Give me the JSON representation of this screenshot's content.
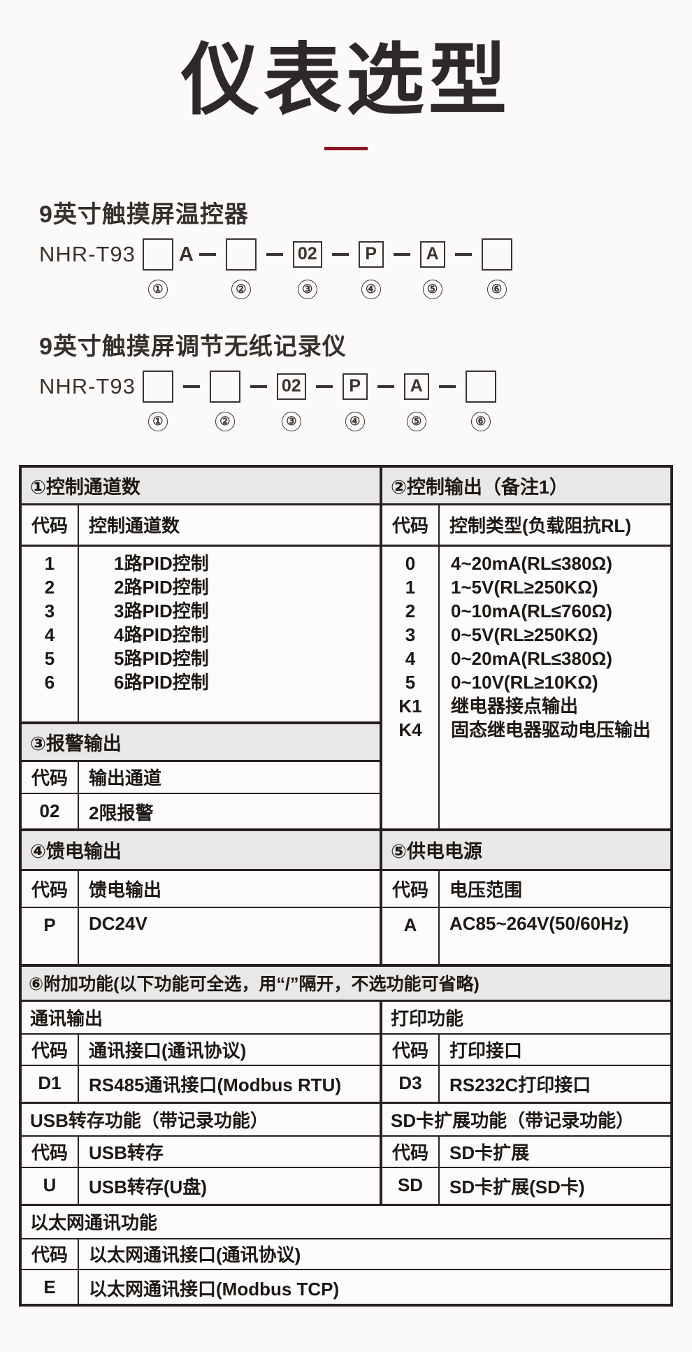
{
  "page": {
    "title": "仪表选型",
    "accent_color": "#8b141f",
    "header_bg": "#e9e8e6",
    "border_color": "#262120"
  },
  "circles": [
    "①",
    "②",
    "③",
    "④",
    "⑤",
    "⑥"
  ],
  "products": [
    {
      "name": "9英寸触摸屏温控器",
      "model_prefix": "NHR-T93",
      "box1_suffix": "A",
      "boxes": [
        "",
        "",
        "02",
        "P",
        "A",
        ""
      ]
    },
    {
      "name": "9英寸触摸屏调节无纸记录仪",
      "model_prefix": "NHR-T93",
      "boxes": [
        "",
        "",
        "02",
        "P",
        "A",
        ""
      ]
    }
  ],
  "tables": {
    "t1": {
      "header": "①控制通道数",
      "code_label": "代码",
      "value_label": "控制通道数",
      "rows": [
        {
          "code": "1",
          "value": "1路PID控制"
        },
        {
          "code": "2",
          "value": "2路PID控制"
        },
        {
          "code": "3",
          "value": "3路PID控制"
        },
        {
          "code": "4",
          "value": "4路PID控制"
        },
        {
          "code": "5",
          "value": "5路PID控制"
        },
        {
          "code": "6",
          "value": "6路PID控制"
        }
      ]
    },
    "t2": {
      "header": "②控制输出（备注1）",
      "code_label": "代码",
      "value_label": "控制类型(负载阻抗RL)",
      "rows": [
        {
          "code": "0",
          "value": "4~20mA(RL≤380Ω)"
        },
        {
          "code": "1",
          "value": "1~5V(RL≥250KΩ)"
        },
        {
          "code": "2",
          "value": "0~10mA(RL≤760Ω)"
        },
        {
          "code": "3",
          "value": "0~5V(RL≥250KΩ)"
        },
        {
          "code": "4",
          "value": "0~20mA(RL≤380Ω)"
        },
        {
          "code": "5",
          "value": "0~10V(RL≥10KΩ)"
        },
        {
          "code": "K1",
          "value": "继电器接点输出"
        },
        {
          "code": "K4",
          "value": "固态继电器驱动电压输出"
        }
      ]
    },
    "t3": {
      "header": "③报警输出",
      "code_label": "代码",
      "value_label": "输出通道",
      "rows": [
        {
          "code": "02",
          "value": "2限报警"
        }
      ]
    },
    "t4": {
      "header": "④馈电输出",
      "code_label": "代码",
      "value_label": "馈电输出",
      "rows": [
        {
          "code": "P",
          "value": "DC24V"
        }
      ]
    },
    "t5": {
      "header": "⑤供电电源",
      "code_label": "代码",
      "value_label": "电压范围",
      "rows": [
        {
          "code": "A",
          "value": "AC85~264V(50/60Hz)"
        }
      ]
    },
    "t6": {
      "header": "⑥附加功能(以下功能可全选，用“/”隔开，不选功能可省略)",
      "comm": {
        "title": "通讯输出",
        "code_label": "代码",
        "value_label": "通讯接口(通讯协议)",
        "rows": [
          {
            "code": "D1",
            "value": "RS485通讯接口(Modbus RTU)"
          }
        ]
      },
      "print": {
        "title": "打印功能",
        "code_label": "代码",
        "value_label": "打印接口",
        "rows": [
          {
            "code": "D3",
            "value": "RS232C打印接口"
          }
        ]
      },
      "usb": {
        "title": "USB转存功能（带记录功能）",
        "code_label": "代码",
        "value_label": "USB转存",
        "rows": [
          {
            "code": "U",
            "value": "USB转存(U盘)"
          }
        ]
      },
      "sd": {
        "title": "SD卡扩展功能（带记录功能）",
        "code_label": "代码",
        "value_label": "SD卡扩展",
        "rows": [
          {
            "code": "SD",
            "value": "SD卡扩展(SD卡)"
          }
        ]
      },
      "ethernet": {
        "title": "以太网通讯功能",
        "code_label": "代码",
        "value_label": "以太网通讯接口(通讯协议)",
        "rows": [
          {
            "code": "E",
            "value": "以太网通讯接口(Modbus TCP)"
          }
        ]
      }
    }
  }
}
